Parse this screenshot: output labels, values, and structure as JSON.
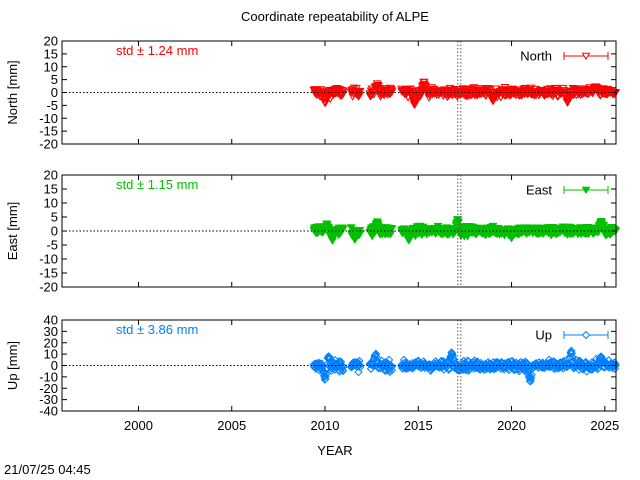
{
  "title": "Coordinate repeatability of ALPE",
  "timestamp": "21/07/25 04:45",
  "xlabel": "YEAR",
  "chart_data": [
    {
      "type": "scatter",
      "component": "north",
      "ylabel": "North [mm]",
      "legend": "North",
      "legend_position": "top-right",
      "std_label": "std ± 1.24 mm",
      "color": "#ff0000",
      "marker": "triangle-down-open",
      "xlim": [
        1995.9,
        2025.6
      ],
      "ylim": [
        -20,
        20
      ],
      "yticks": [
        -20,
        -15,
        -10,
        -5,
        0,
        5,
        10,
        15,
        20
      ],
      "xticks": [
        2000,
        2005,
        2010,
        2015,
        2020,
        2025
      ],
      "reference_line_y": 0,
      "vertical_marker_x": 2017.2,
      "data_range": [
        2009.4,
        2025.6
      ],
      "segments": [
        {
          "x": [
            2009.4,
            2011.0
          ],
          "spread": 2.0,
          "peaks": [
            [
              2010.0,
              -5
            ]
          ]
        },
        {
          "x": [
            2011.4,
            2011.9
          ],
          "spread": 1.6,
          "peaks": []
        },
        {
          "x": [
            2012.4,
            2013.6
          ],
          "spread": 1.7,
          "peaks": [
            [
              2012.8,
              4
            ]
          ]
        },
        {
          "x": [
            2014.1,
            2025.6
          ],
          "spread": 1.6,
          "peaks": [
            [
              2014.8,
              -6
            ],
            [
              2015.3,
              5
            ],
            [
              2019.0,
              -4
            ],
            [
              2023.0,
              -5
            ],
            [
              2024.5,
              3
            ]
          ]
        }
      ]
    },
    {
      "type": "scatter",
      "component": "east",
      "ylabel": "East [mm]",
      "legend": "East",
      "legend_position": "top-right",
      "std_label": "std ± 1.15 mm",
      "color": "#00c000",
      "marker": "triangle-down-filled",
      "xlim": [
        1995.9,
        2025.6
      ],
      "ylim": [
        -20,
        20
      ],
      "yticks": [
        -20,
        -15,
        -10,
        -5,
        0,
        5,
        10,
        15,
        20
      ],
      "xticks": [
        2000,
        2005,
        2010,
        2015,
        2020,
        2025
      ],
      "reference_line_y": 0,
      "vertical_marker_x": 2017.2,
      "data_range": [
        2009.4,
        2025.6
      ],
      "segments": [
        {
          "x": [
            2009.4,
            2011.0
          ],
          "spread": 1.8,
          "peaks": [
            [
              2010.4,
              -4
            ],
            [
              2010.1,
              3
            ]
          ]
        },
        {
          "x": [
            2011.4,
            2011.9
          ],
          "spread": 1.8,
          "peaks": [
            [
              2011.6,
              -4
            ]
          ]
        },
        {
          "x": [
            2012.4,
            2013.6
          ],
          "spread": 1.7,
          "peaks": [
            [
              2012.8,
              4
            ]
          ]
        },
        {
          "x": [
            2014.1,
            2025.6
          ],
          "spread": 1.6,
          "peaks": [
            [
              2014.5,
              -4
            ],
            [
              2017.1,
              5
            ],
            [
              2020.0,
              -3
            ],
            [
              2024.8,
              4
            ]
          ]
        }
      ]
    },
    {
      "type": "scatter",
      "component": "up",
      "ylabel": "Up [mm]",
      "legend": "Up",
      "legend_position": "top-right",
      "std_label": "std ± 3.86 mm",
      "color": "#0080ff",
      "marker": "diamond-open",
      "xlim": [
        1995.9,
        2025.6
      ],
      "ylim": [
        -40,
        40
      ],
      "yticks": [
        -40,
        -30,
        -20,
        -10,
        0,
        10,
        20,
        30,
        40
      ],
      "xticks": [
        2000,
        2005,
        2010,
        2015,
        2020,
        2025
      ],
      "reference_line_y": 0,
      "vertical_marker_x": 2017.2,
      "data_range": [
        2009.4,
        2025.6
      ],
      "segments": [
        {
          "x": [
            2009.4,
            2011.0
          ],
          "spread": 5.0,
          "peaks": [
            [
              2010.0,
              -15
            ],
            [
              2010.2,
              10
            ]
          ]
        },
        {
          "x": [
            2011.4,
            2011.9
          ],
          "spread": 4.5,
          "peaks": []
        },
        {
          "x": [
            2012.4,
            2013.6
          ],
          "spread": 4.5,
          "peaks": [
            [
              2012.7,
              12
            ]
          ]
        },
        {
          "x": [
            2014.1,
            2025.6
          ],
          "spread": 4.2,
          "peaks": [
            [
              2016.8,
              14
            ],
            [
              2021.0,
              -18
            ],
            [
              2023.2,
              15
            ],
            [
              2024.8,
              10
            ]
          ]
        }
      ]
    }
  ]
}
